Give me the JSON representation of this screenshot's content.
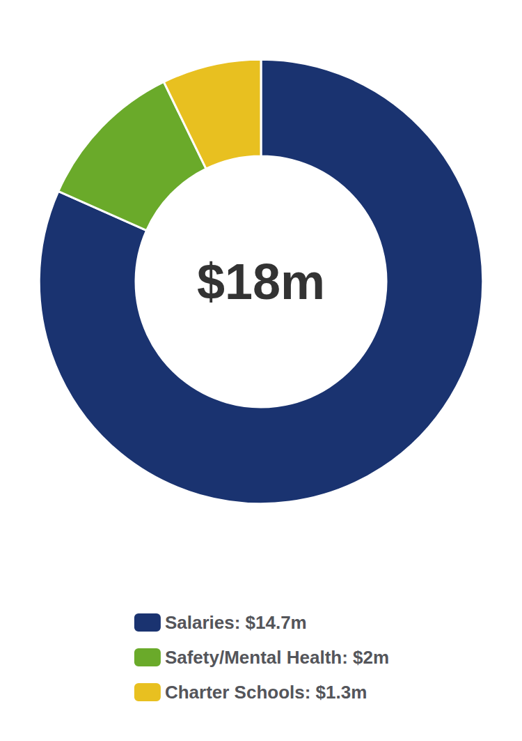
{
  "chart_data": {
    "type": "pie",
    "categories": [
      "Salaries: $14.7m",
      "Safety/Mental Health: $2m",
      "Charter Schools: $1.3m"
    ],
    "values": [
      14.7,
      2.0,
      1.3
    ],
    "colors": [
      "#1a3370",
      "#6aaa2a",
      "#e8c020"
    ],
    "annotation": "$18m",
    "legend": "bottom"
  }
}
